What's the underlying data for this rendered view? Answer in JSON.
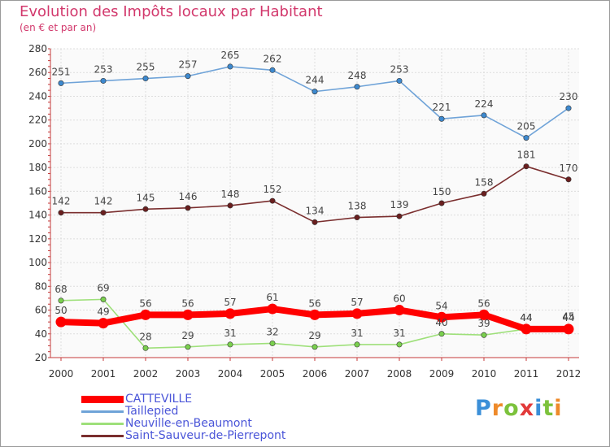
{
  "header": {
    "title": "Evolution des Impôts locaux par Habitant",
    "subtitle": "(en € et par an)"
  },
  "brand": {
    "text": "Proxiti",
    "colors": [
      "#3b8fd8",
      "#ee8a2a",
      "#7cc23c",
      "#e23a3a",
      "#3b8fd8",
      "#7cc23c",
      "#ee8a2a"
    ]
  },
  "chart_data": {
    "type": "line",
    "title": "Evolution des Impôts locaux par Habitant",
    "subtitle": "(en € et par an)",
    "xlabel": "",
    "ylabel": "",
    "x": [
      "2000",
      "2001",
      "2002",
      "2003",
      "2004",
      "2005",
      "2006",
      "2007",
      "2008",
      "2009",
      "2010",
      "2011",
      "2012"
    ],
    "ylim": [
      20,
      280
    ],
    "yticks": [
      20,
      40,
      60,
      80,
      100,
      120,
      140,
      160,
      180,
      200,
      220,
      240,
      260,
      280
    ],
    "grid": true,
    "legend_position": "bottom-left",
    "series": [
      {
        "name": "CATTEVILLE",
        "color": "#ff0000",
        "thick": true,
        "values": [
          50,
          49,
          56,
          56,
          57,
          61,
          56,
          57,
          60,
          54,
          56,
          44,
          44
        ],
        "labels": [
          "50",
          "49",
          "56",
          "56",
          "57",
          "61",
          "56",
          "57",
          "60",
          "54",
          "56",
          "44",
          "44"
        ]
      },
      {
        "name": "Taillepied",
        "color": "#6fa3d8",
        "point_color": "#3d89cf",
        "values": [
          251,
          253,
          255,
          257,
          265,
          262,
          244,
          248,
          253,
          221,
          224,
          205,
          230
        ],
        "labels": [
          "251",
          "253",
          "255",
          "257",
          "265",
          "262",
          "244",
          "248",
          "253",
          "221",
          "224",
          "205",
          "230"
        ]
      },
      {
        "name": "Neuville-en-Beaumont",
        "color": "#9ee07a",
        "point_color": "#7ad04e",
        "values": [
          68,
          69,
          28,
          29,
          31,
          32,
          29,
          31,
          31,
          40,
          39,
          44,
          45
        ],
        "labels": [
          "68",
          "69",
          "28",
          "29",
          "31",
          "32",
          "29",
          "31",
          "31",
          "40",
          "39",
          "44",
          "45"
        ]
      },
      {
        "name": "Saint-Sauveur-de-Pierrepont",
        "color": "#7a2e2e",
        "point_color": "#6a1f1f",
        "values": [
          142,
          142,
          145,
          146,
          148,
          152,
          134,
          138,
          139,
          150,
          158,
          181,
          170
        ],
        "labels": [
          "142",
          "142",
          "145",
          "146",
          "148",
          "152",
          "134",
          "138",
          "139",
          "150",
          "158",
          "181",
          "170"
        ]
      }
    ]
  }
}
